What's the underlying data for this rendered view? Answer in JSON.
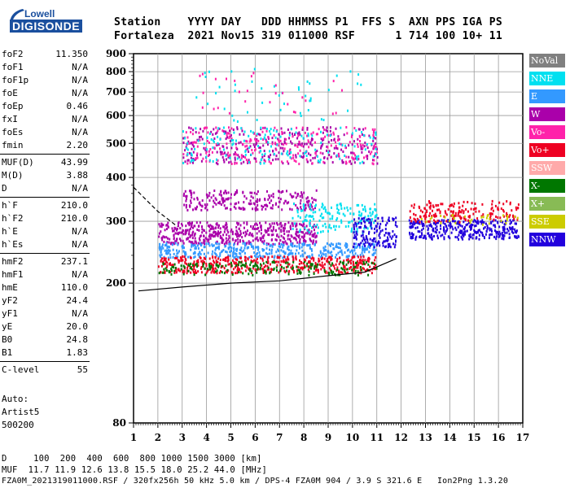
{
  "logo": {
    "top": "Lowell",
    "main": "DIGISONDE"
  },
  "header": {
    "line1": "Station    YYYY DAY   DDD HHMMSS P1  FFS S  AXN PPS IGA PS",
    "line2": "Fortaleza  2021 Nov15 319 011000 RSF      1 714 100 10+ 11"
  },
  "params": [
    {
      "label": "foF2",
      "value": "11.350"
    },
    {
      "label": "foF1",
      "value": "N/A"
    },
    {
      "label": "foF1p",
      "value": "N/A"
    },
    {
      "label": "foE",
      "value": "N/A"
    },
    {
      "label": "foEp",
      "value": "0.46"
    },
    {
      "label": "fxI",
      "value": "N/A"
    },
    {
      "label": "foEs",
      "value": "N/A"
    },
    {
      "label": "fmin",
      "value": "2.20"
    },
    {
      "label": "MUF(D)",
      "value": "43.99"
    },
    {
      "label": "M(D)",
      "value": "3.88"
    },
    {
      "label": "D",
      "value": "N/A"
    },
    {
      "label": "h`F",
      "value": "210.0"
    },
    {
      "label": "h`F2",
      "value": "210.0"
    },
    {
      "label": "h`E",
      "value": "N/A"
    },
    {
      "label": "h`Es",
      "value": "N/A"
    },
    {
      "label": "hmF2",
      "value": "237.1"
    },
    {
      "label": "hmF1",
      "value": "N/A"
    },
    {
      "label": "hmE",
      "value": "110.0"
    },
    {
      "label": "yF2",
      "value": "24.4"
    },
    {
      "label": "yF1",
      "value": "N/A"
    },
    {
      "label": "yE",
      "value": "20.0"
    },
    {
      "label": "B0",
      "value": "24.8"
    },
    {
      "label": "B1",
      "value": "1.83"
    },
    {
      "label": "C-level",
      "value": "55"
    }
  ],
  "auto": {
    "line1": "Auto:",
    "line2": "Artist5",
    "line3": "500200"
  },
  "footer": {
    "line1": "D     100  200  400  600  800 1000 1500 3000 [km]",
    "line2": "MUF  11.7 11.9 12.6 13.8 15.5 18.0 25.2 44.0 [MHz]",
    "line3": "FZA0M_2021319011000.RSF / 320fx256h 50 kHz 5.0 km / DPS-4 FZA0M 904 / 3.9 S 321.6 E   Ion2Png 1.3.20"
  },
  "legend": [
    {
      "label": "NoVal",
      "color": "#808080",
      "text_color": "#ffffff"
    },
    {
      "label": "NNE",
      "color": "#00e0f0",
      "text_color": "#ffffff"
    },
    {
      "label": "E",
      "color": "#3399ff",
      "text_color": "#ffffff"
    },
    {
      "label": "W",
      "color": "#aa00aa",
      "text_color": "#ffffff"
    },
    {
      "label": "Vo-",
      "color": "#ff22aa",
      "text_color": "#ffffff"
    },
    {
      "label": "Vo+",
      "color": "#ee0022",
      "text_color": "#ffffff"
    },
    {
      "label": "SSW",
      "color": "#ffaaaa",
      "text_color": "#ffffff"
    },
    {
      "label": "X-",
      "color": "#007700",
      "text_color": "#ffffff"
    },
    {
      "label": "X+",
      "color": "#88bb55",
      "text_color": "#ffffff"
    },
    {
      "label": "SSE",
      "color": "#cccc00",
      "text_color": "#ffffff"
    },
    {
      "label": "NNW",
      "color": "#2200dd",
      "text_color": "#ffffff"
    }
  ],
  "chart_data": {
    "type": "scatter",
    "scale_y": "log",
    "x_ticks": [
      1,
      2,
      3,
      4,
      5,
      6,
      7,
      8,
      9,
      10,
      11,
      12,
      13,
      14,
      15,
      16,
      17
    ],
    "y_ticks": [
      80,
      200,
      300,
      400,
      500,
      600,
      700,
      800,
      900
    ],
    "xlim": [
      1,
      17
    ],
    "ylim": [
      80,
      900
    ],
    "grid": true,
    "clusters": [
      {
        "series": "W",
        "x": [
          2.0,
          8.5
        ],
        "y": [
          260,
          300
        ],
        "density": 0.55
      },
      {
        "series": "W",
        "x": [
          3.0,
          8.5
        ],
        "y": [
          325,
          370
        ],
        "density": 0.35
      },
      {
        "series": "E",
        "x": [
          2.0,
          11.0
        ],
        "y": [
          238,
          262
        ],
        "density": 0.5
      },
      {
        "series": "Vo+",
        "x": [
          2.0,
          11.0
        ],
        "y": [
          215,
          240
        ],
        "density": 0.5
      },
      {
        "series": "X-",
        "x": [
          2.0,
          11.0
        ],
        "y": [
          212,
          232
        ],
        "density": 0.25
      },
      {
        "series": "NNE",
        "x": [
          7.5,
          11.0
        ],
        "y": [
          280,
          340
        ],
        "density": 0.25
      },
      {
        "series": "W",
        "x": [
          3.0,
          11.0
        ],
        "y": [
          440,
          560
        ],
        "density": 0.18
      },
      {
        "series": "Vo-",
        "x": [
          3.0,
          11.0
        ],
        "y": [
          440,
          560
        ],
        "density": 0.12
      },
      {
        "series": "NNE",
        "x": [
          3.0,
          11.0
        ],
        "y": [
          440,
          560
        ],
        "density": 0.08
      },
      {
        "series": "NNW",
        "x": [
          10.0,
          11.8
        ],
        "y": [
          255,
          310
        ],
        "density": 0.45
      },
      {
        "series": "NNW",
        "x": [
          12.3,
          16.8
        ],
        "y": [
          268,
          305
        ],
        "density": 0.6
      },
      {
        "series": "Vo+",
        "x": [
          12.3,
          16.8
        ],
        "y": [
          300,
          345
        ],
        "density": 0.3
      },
      {
        "series": "SSE",
        "x": [
          12.3,
          16.8
        ],
        "y": [
          295,
          315
        ],
        "density": 0.12
      },
      {
        "series": "NNE",
        "x": [
          3.5,
          10.5
        ],
        "y": [
          580,
          820
        ],
        "density": 0.02
      },
      {
        "series": "Vo-",
        "x": [
          3.5,
          10.5
        ],
        "y": [
          600,
          800
        ],
        "density": 0.015
      }
    ],
    "trace_solid": {
      "x": [
        1.2,
        3,
        5,
        7,
        9,
        10.5,
        11.8
      ],
      "y": [
        190,
        195,
        200,
        203,
        210,
        215,
        235
      ]
    },
    "trace_dashed": {
      "x": [
        1.0,
        2.0,
        2.8
      ],
      "y": [
        375,
        320,
        290
      ]
    }
  }
}
